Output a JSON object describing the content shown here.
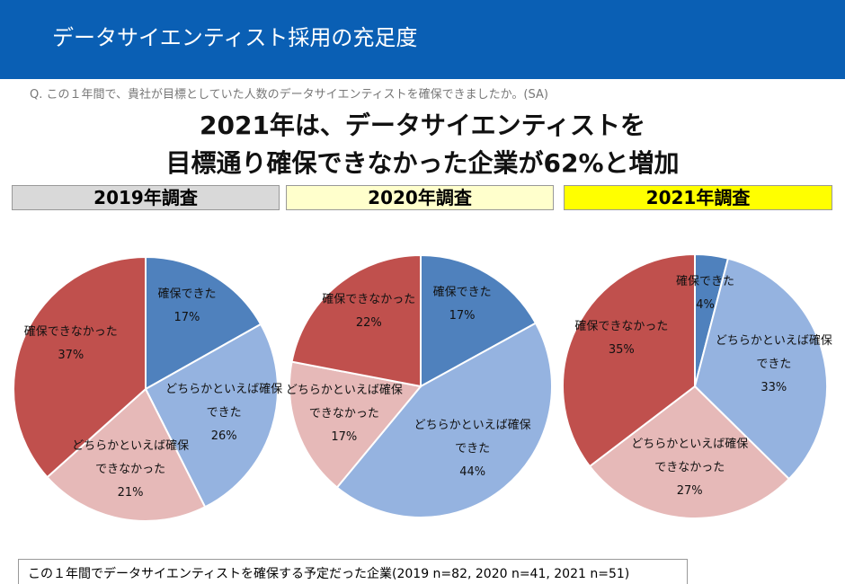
{
  "header": {
    "title": "データサイエンティスト採用の充足度"
  },
  "question": "Q. この１年間で、貴社が目標としていた人数のデータサイエンティストを確保できましたか。(SA)",
  "headline": [
    "2021年は、データサイエンティストを",
    "目標通り確保できなかった企業が62%と増加"
  ],
  "chart_data": [
    {
      "type": "pie",
      "title": "2019年調査",
      "title_color": "#d9d9d9",
      "categories": [
        "確保できた",
        "どちらかといえば確保できた",
        "どちらかといえば確保できなかった",
        "確保できなかった"
      ],
      "values": [
        17,
        26,
        21,
        37
      ],
      "value_labels": [
        "17%",
        "26%",
        "21%",
        "37%"
      ],
      "colors": [
        "#4f81bd",
        "#95b3e0",
        "#e6b9b8",
        "#c0504d"
      ]
    },
    {
      "type": "pie",
      "title": "2020年調査",
      "title_color": "#ffffcc",
      "categories": [
        "確保できた",
        "どちらかといえば確保できた",
        "どちらかといえば確保できなかった",
        "確保できなかった"
      ],
      "values": [
        17,
        44,
        17,
        22
      ],
      "value_labels": [
        "17%",
        "44%",
        "17%",
        "22%"
      ],
      "colors": [
        "#4f81bd",
        "#95b3e0",
        "#e6b9b8",
        "#c0504d"
      ]
    },
    {
      "type": "pie",
      "title": "2021年調査",
      "title_color": "#ffff00",
      "categories": [
        "確保できた",
        "どちらかといえば確保できた",
        "どちらかといえば確保できなかった",
        "確保できなかった"
      ],
      "values": [
        4,
        33,
        27,
        35
      ],
      "value_labels": [
        "4%",
        "33%",
        "27%",
        "35%"
      ],
      "colors": [
        "#4f81bd",
        "#95b3e0",
        "#e6b9b8",
        "#c0504d"
      ]
    }
  ],
  "footnote": "この１年間でデータサイエンティストを確保する予定だった企業(2019 n=82, 2020 n=41, 2021 n=51)"
}
